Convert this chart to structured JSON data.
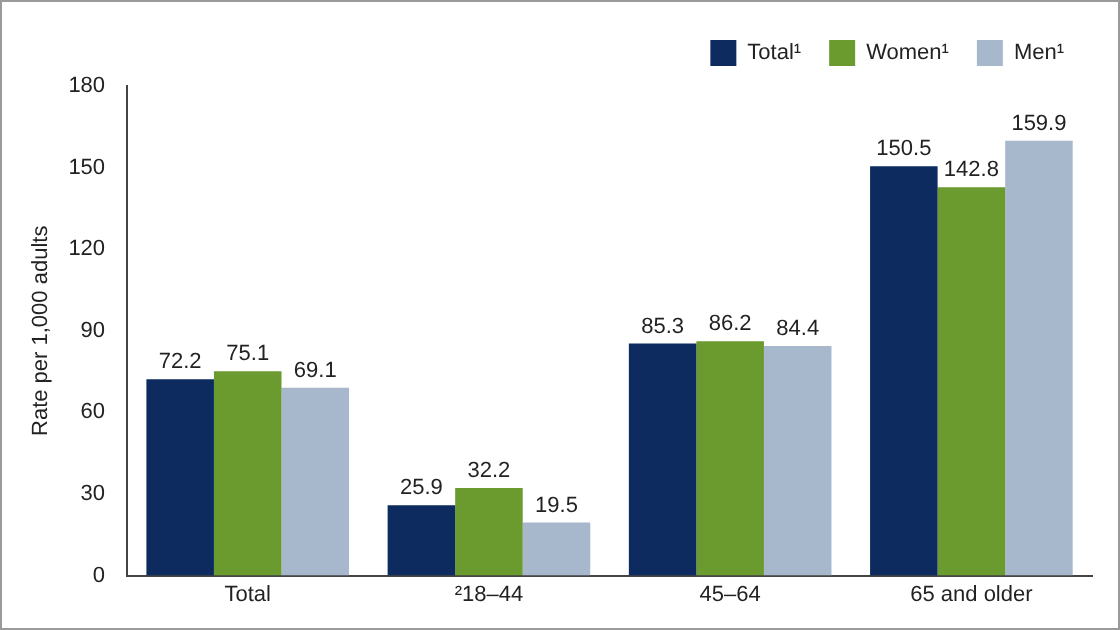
{
  "chart_data": {
    "type": "bar",
    "ylabel": "Rate per 1,000 adults",
    "categories": [
      "Total",
      "²18–44",
      "45–64",
      "65 and older"
    ],
    "series": [
      {
        "name": "Total¹",
        "color": "#0d2b5e",
        "values": [
          72.2,
          25.9,
          85.3,
          150.5
        ]
      },
      {
        "name": "Women¹",
        "color": "#6b9a2f",
        "values": [
          75.1,
          32.2,
          86.2,
          142.8
        ]
      },
      {
        "name": "Men¹",
        "color": "#a8b8cc",
        "values": [
          69.1,
          19.5,
          84.4,
          159.9
        ]
      }
    ],
    "ylim": [
      0,
      180
    ],
    "yticks": [
      0,
      30,
      60,
      90,
      120,
      150,
      180
    ],
    "grid": false,
    "legend": "top right",
    "data_labels": true
  }
}
